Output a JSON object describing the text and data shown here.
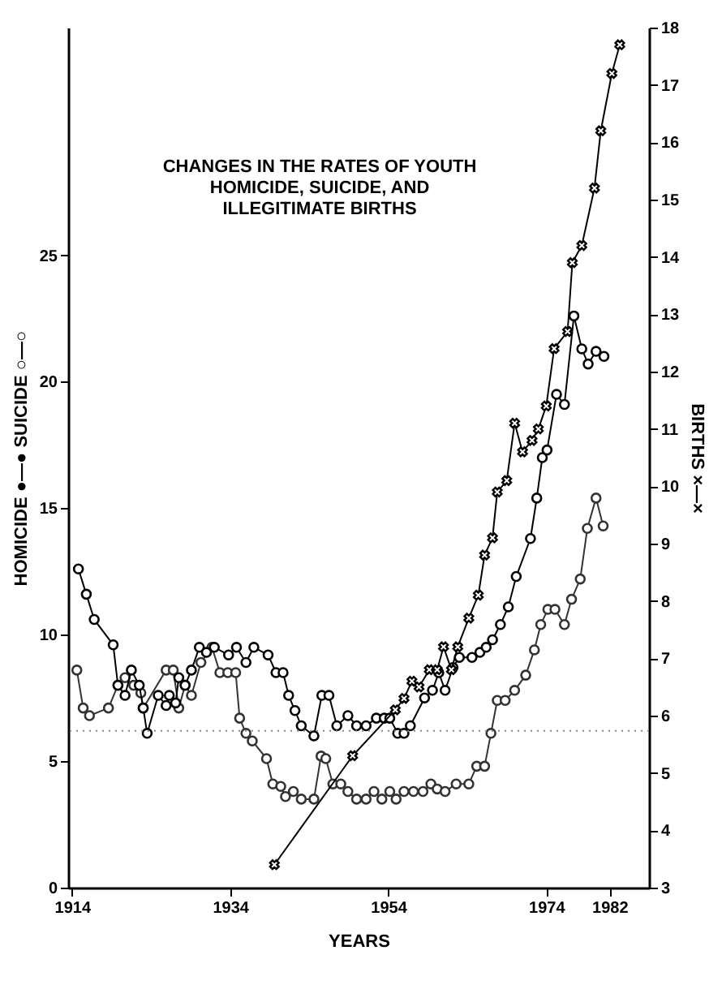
{
  "chart_data": {
    "type": "line",
    "title": "CHANGES IN THE RATES OF YOUTH\nHOMICIDE, SUICIDE, AND\nILLEGITIMATE BIRTHS",
    "xlabel": "YEARS",
    "ylabel": "HOMICIDE ●—● SUICIDE ○—○",
    "y2label": "BIRTHS ×—×",
    "xlim": [
      1913.5,
      1987
    ],
    "xticks": [
      1914,
      1934,
      1954,
      1974,
      1982
    ],
    "ylim": [
      0,
      34
    ],
    "yticks": [
      0,
      5,
      10,
      15,
      20,
      25
    ],
    "y2lim": [
      3,
      18
    ],
    "y2ticks": [
      3,
      4,
      5,
      6,
      7,
      8,
      9,
      10,
      11,
      12,
      13,
      14,
      15,
      16,
      17,
      18
    ],
    "grid": false,
    "ref_lines": [
      {
        "axis": "y",
        "value": 6.2,
        "color": "#888888",
        "line_style": "dotted"
      }
    ],
    "series": [
      {
        "color": "#333333",
        "marker": "circle",
        "x": [
          1914.6,
          1915.4,
          1916.2,
          1918.6,
          1919.8,
          1920.7,
          1921.8,
          1922.7,
          1923,
          1925.9,
          1926.8,
          1927.5,
          1928.3,
          1929.1,
          1930.3,
          1931.7,
          1932.7,
          1933.7,
          1934.7,
          1935.2,
          1936,
          1936.8,
          1938.6,
          1939.4,
          1940.4,
          1941,
          1942,
          1943,
          1944.6,
          1945.5,
          1946.1,
          1947,
          1948,
          1948.9,
          1950,
          1951.2,
          1952.2,
          1953.2,
          1954.2,
          1955,
          1956,
          1957.2,
          1958.4,
          1959.4,
          1960.2,
          1961.2,
          1962.6,
          1964.2,
          1965.2,
          1966.2,
          1967,
          1967.8,
          1968.8,
          1970,
          1971.4,
          1972.5,
          1973.3,
          1974.2,
          1975.1,
          1976.3,
          1977.2,
          1978.3,
          1979.2,
          1980.3,
          1981.2
        ],
        "values": [
          8.6,
          7.1,
          6.8,
          7.1,
          8.0,
          8.3,
          8.0,
          7.7,
          7.1,
          8.6,
          8.6,
          7.1,
          8.0,
          7.6,
          8.9,
          9.5,
          8.5,
          8.5,
          8.5,
          6.7,
          6.1,
          5.8,
          5.1,
          4.1,
          4.0,
          3.6,
          3.8,
          3.5,
          3.5,
          5.2,
          5.1,
          4.1,
          4.1,
          3.8,
          3.5,
          3.5,
          3.8,
          3.5,
          3.8,
          3.5,
          3.8,
          3.8,
          3.8,
          4.1,
          3.9,
          3.8,
          4.1,
          4.1,
          4.8,
          4.8,
          6.1,
          7.4,
          7.4,
          7.8,
          8.4,
          9.4,
          10.4,
          11.0,
          11.0,
          10.4,
          11.4,
          12.2,
          14.2,
          15.4,
          14.3
        ]
      },
      {
        "color": "#000000",
        "marker": "circle",
        "x": [
          1914.8,
          1915.8,
          1916.8,
          1919.2,
          1919.8,
          1920.7,
          1921.5,
          1922.5,
          1923,
          1923.5,
          1924.9,
          1925.9,
          1926.3,
          1927.1,
          1927.5,
          1928.3,
          1929.1,
          1930.1,
          1931,
          1932,
          1933.8,
          1934.8,
          1936,
          1937,
          1938.8,
          1939.8,
          1940.7,
          1941.4,
          1942.2,
          1943,
          1944.6,
          1945.6,
          1946.5,
          1947.5,
          1948.9,
          1950,
          1951.2,
          1952.5,
          1953.5,
          1954.2,
          1955.2,
          1956,
          1956.8,
          1958.6,
          1959.6,
          1960.4,
          1961.2,
          1962.2,
          1963,
          1964.6,
          1965.6,
          1966.4,
          1967.2,
          1968.2,
          1969.2,
          1970.2,
          1972,
          1972.8,
          1973.5,
          1974.1,
          1975.3,
          1976.3,
          1977.5,
          1978.5,
          1979.3,
          1980.3,
          1981.3
        ],
        "values": [
          12.6,
          11.6,
          10.6,
          9.6,
          8.0,
          7.6,
          8.6,
          8.0,
          7.1,
          6.1,
          7.6,
          7.2,
          7.6,
          7.3,
          8.3,
          8.0,
          8.6,
          9.5,
          9.3,
          9.5,
          9.2,
          9.5,
          8.9,
          9.5,
          9.2,
          8.5,
          8.5,
          7.6,
          7.0,
          6.4,
          6.0,
          7.6,
          7.6,
          6.4,
          6.8,
          6.4,
          6.4,
          6.7,
          6.7,
          6.7,
          6.1,
          6.1,
          6.4,
          7.5,
          7.8,
          8.5,
          7.8,
          8.7,
          9.1,
          9.1,
          9.3,
          9.5,
          9.8,
          10.4,
          11.1,
          12.3,
          13.8,
          15.4,
          17.0,
          17.3,
          19.5,
          19.1,
          22.6,
          21.3,
          20.7,
          21.2,
          21.0
        ]
      },
      {
        "color": "#000000",
        "marker": "cross",
        "axis": "y2",
        "x": [
          1939.6,
          1949.5,
          1954.9,
          1956,
          1957,
          1957.9,
          1959.2,
          1960.2,
          1961,
          1962,
          1962.8,
          1964.2,
          1965.4,
          1966.2,
          1967.2,
          1967.8,
          1969,
          1970,
          1971,
          1972.2,
          1973,
          1974,
          1975,
          1976.7,
          1977.3,
          1978.5,
          1980.1,
          1980.9,
          1982.3,
          1983.3
        ],
        "values": [
          3.4,
          5.3,
          6.1,
          6.3,
          6.6,
          6.5,
          6.8,
          6.8,
          7.2,
          6.8,
          7.2,
          7.7,
          8.1,
          8.8,
          9.1,
          9.9,
          10.1,
          11.1,
          10.6,
          10.8,
          11.0,
          11.4,
          12.4,
          12.7,
          13.9,
          14.2,
          15.2,
          16.2,
          17.2,
          17.7
        ]
      }
    ]
  }
}
